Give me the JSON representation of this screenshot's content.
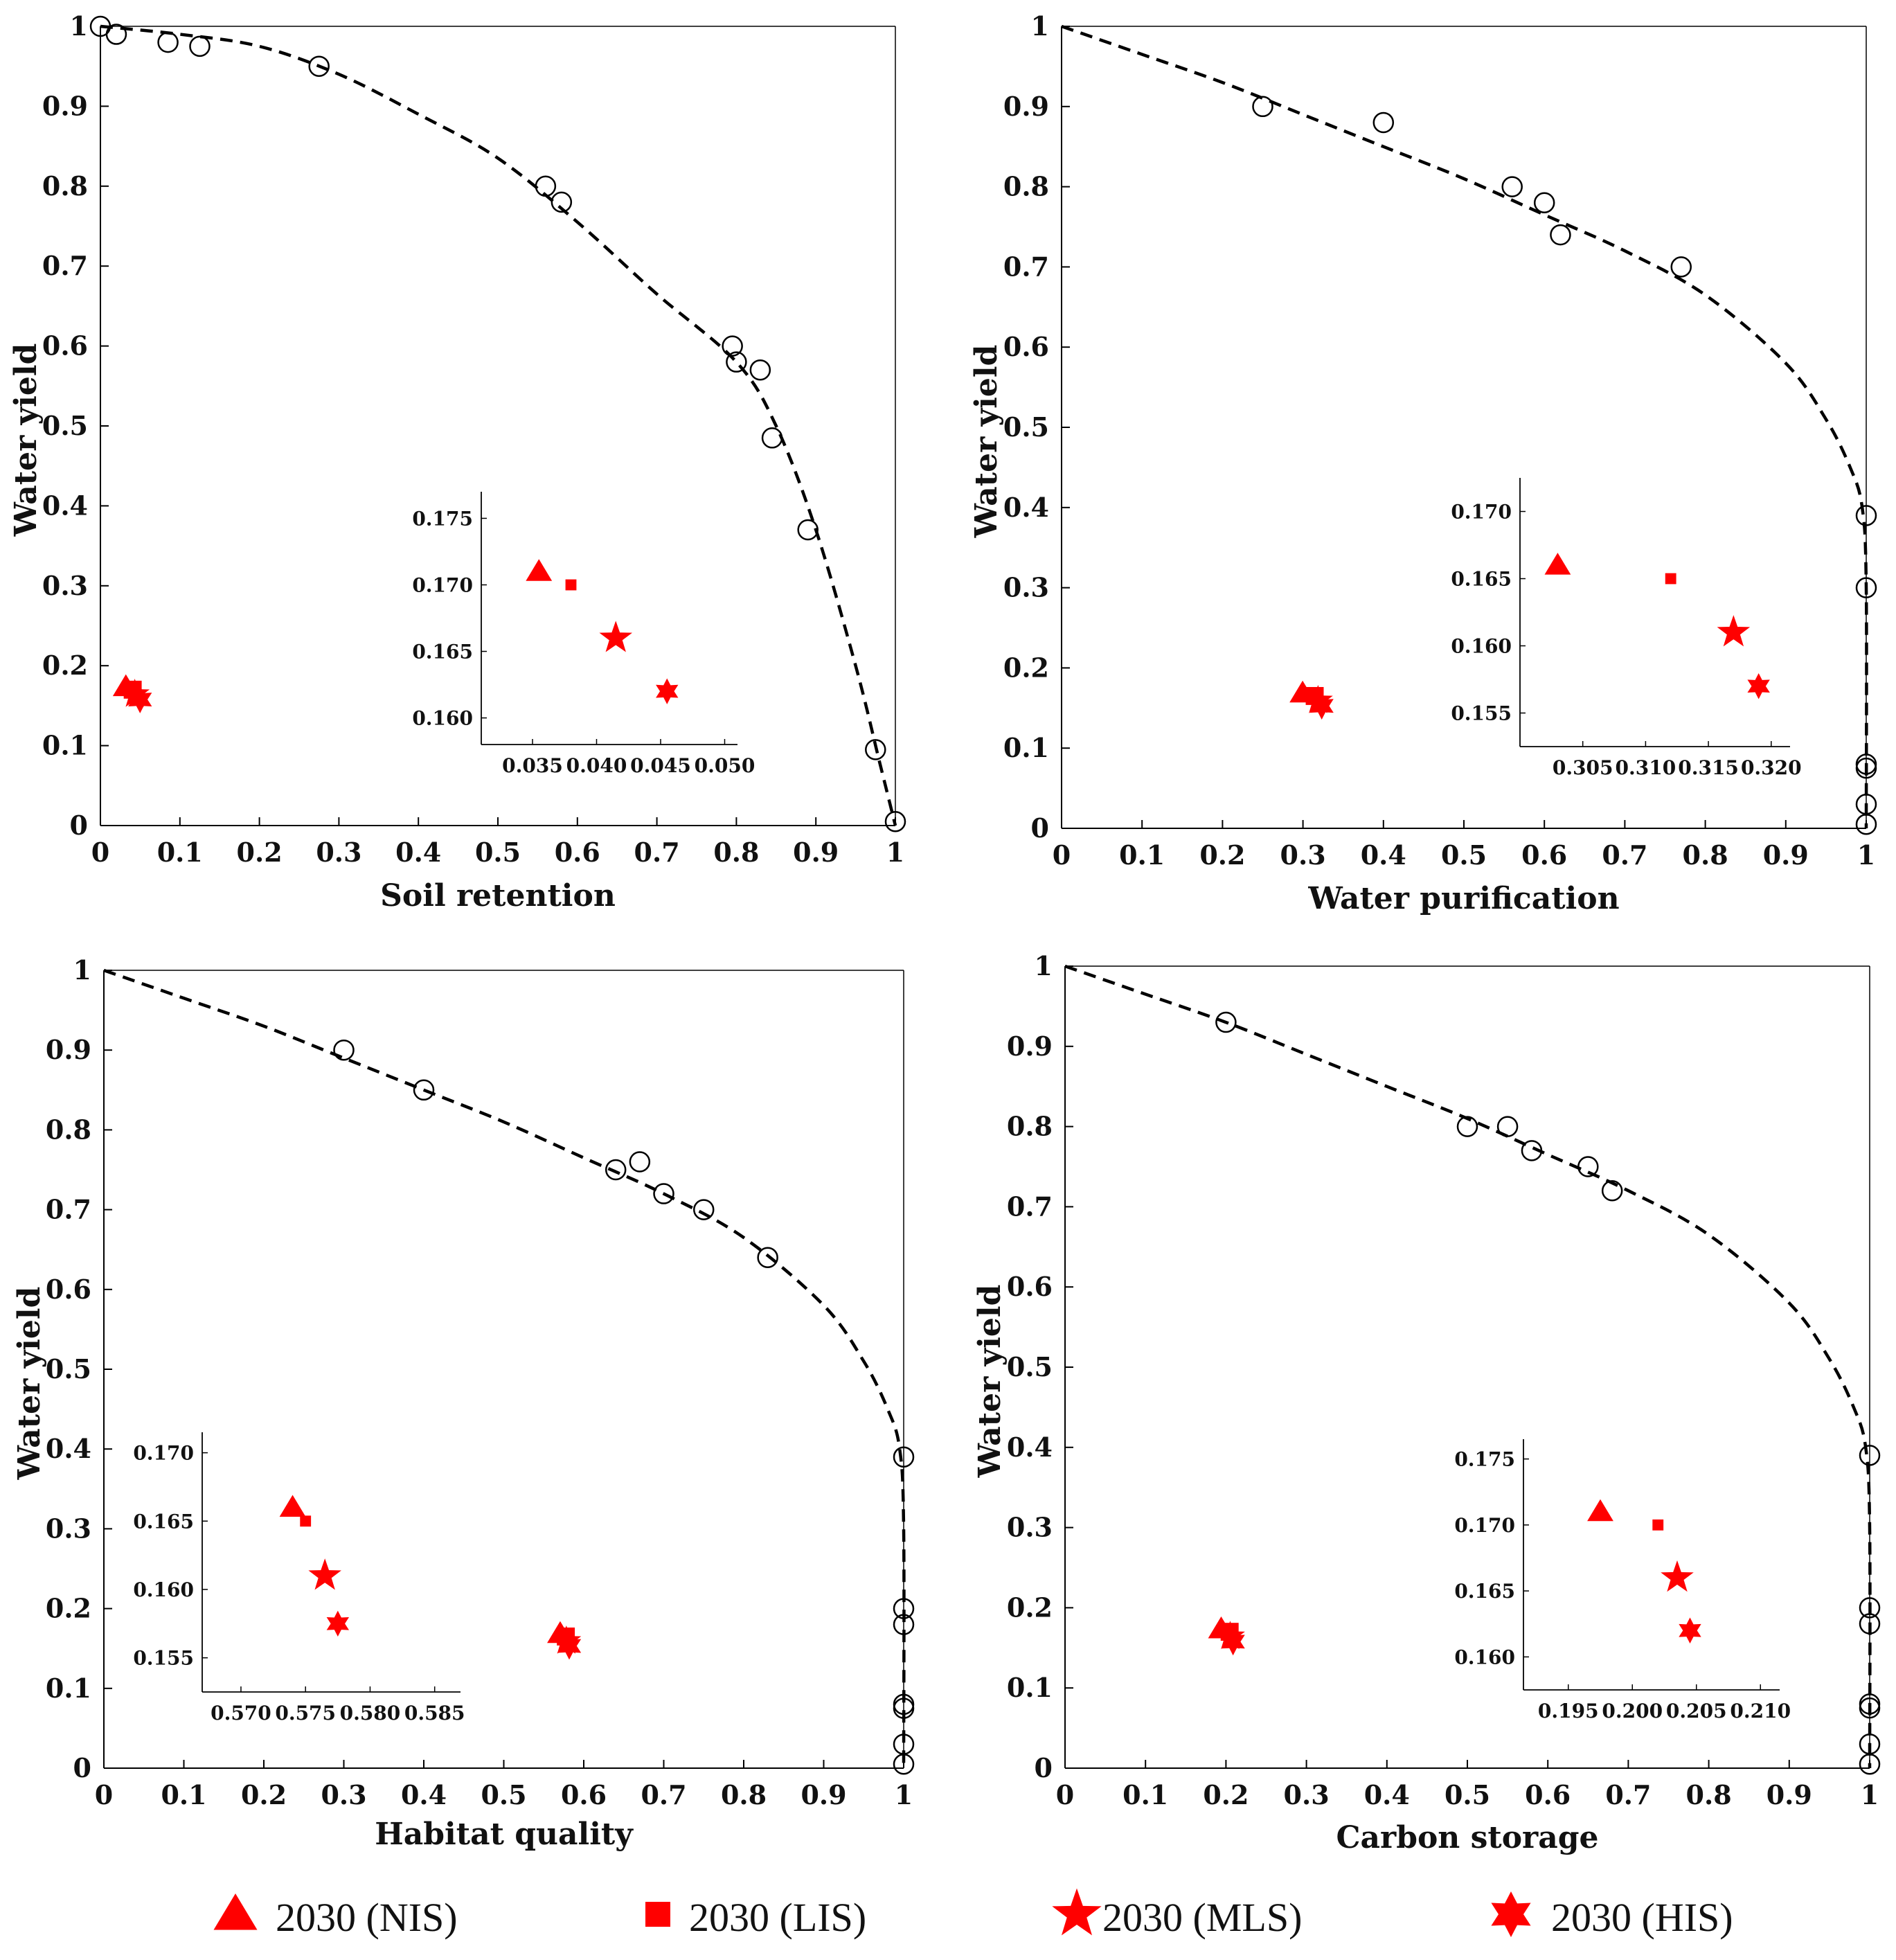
{
  "colors": {
    "marker": "#ff0000",
    "line": "#000000"
  },
  "legend": [
    {
      "label": "2030 (NIS)",
      "symbol": "triangle"
    },
    {
      "label": "2030 (LIS)",
      "symbol": "square"
    },
    {
      "label": "2030 (MLS)",
      "symbol": "star5"
    },
    {
      "label": "2030 (HIS)",
      "symbol": "star6"
    }
  ],
  "chart_data": [
    {
      "id": "soil",
      "type": "scatter",
      "xlabel": "Soil retention",
      "ylabel": "Water yield",
      "xlim": [
        0,
        1
      ],
      "ylim": [
        0,
        1
      ],
      "xticks": [
        "0",
        "0.1",
        "0.2",
        "0.3",
        "0.4",
        "0.5",
        "0.6",
        "0.7",
        "0.8",
        "0.9",
        "1"
      ],
      "yticks": [
        "0",
        "0.1",
        "0.2",
        "0.3",
        "0.4",
        "0.5",
        "0.6",
        "0.7",
        "0.8",
        "0.9",
        "1"
      ],
      "frontier_points": [
        [
          0,
          1
        ],
        [
          0.02,
          0.99
        ],
        [
          0.085,
          0.98
        ],
        [
          0.125,
          0.975
        ],
        [
          0.275,
          0.95
        ],
        [
          0.56,
          0.8
        ],
        [
          0.58,
          0.78
        ],
        [
          0.795,
          0.6
        ],
        [
          0.8,
          0.58
        ],
        [
          0.83,
          0.57
        ],
        [
          0.845,
          0.485
        ],
        [
          0.89,
          0.37
        ],
        [
          0.975,
          0.095
        ],
        [
          1,
          0.005
        ]
      ],
      "frontier_curve": [
        [
          0,
          1
        ],
        [
          0.1,
          0.99
        ],
        [
          0.2,
          0.975
        ],
        [
          0.3,
          0.94
        ],
        [
          0.4,
          0.89
        ],
        [
          0.5,
          0.835
        ],
        [
          0.6,
          0.755
        ],
        [
          0.7,
          0.665
        ],
        [
          0.8,
          0.58
        ],
        [
          0.85,
          0.5
        ],
        [
          0.9,
          0.37
        ],
        [
          0.95,
          0.2
        ],
        [
          0.98,
          0.08
        ],
        [
          1,
          0
        ]
      ],
      "scenarios": [
        {
          "name": "2030 (NIS)",
          "symbol": "triangle",
          "x": 0.0355,
          "y": 0.171
        },
        {
          "name": "2030 (LIS)",
          "symbol": "square",
          "x": 0.038,
          "y": 0.17
        },
        {
          "name": "2030 (MLS)",
          "symbol": "star5",
          "x": 0.0415,
          "y": 0.166
        },
        {
          "name": "2030 (HIS)",
          "symbol": "star6",
          "x": 0.0455,
          "y": 0.162
        }
      ],
      "inset": {
        "xlim": [
          0.031,
          0.051
        ],
        "ylim": [
          0.158,
          0.177
        ],
        "xticks": [
          0.035,
          0.04,
          0.045,
          0.05
        ],
        "xtick_labels": [
          "0.035",
          "0.040",
          "0.045",
          "0.050"
        ],
        "yticks": [
          0.16,
          0.165,
          0.17,
          0.175
        ],
        "ytick_labels": [
          "0.160",
          "0.165",
          "0.170",
          "0.175"
        ]
      }
    },
    {
      "id": "water",
      "type": "scatter",
      "xlabel": "Water purification",
      "ylabel": "Water yield",
      "xlim": [
        0,
        1
      ],
      "ylim": [
        0,
        1
      ],
      "xticks": [
        "0",
        "0.1",
        "0.2",
        "0.3",
        "0.4",
        "0.5",
        "0.6",
        "0.7",
        "0.8",
        "0.9",
        "1"
      ],
      "yticks": [
        "0",
        "0.1",
        "0.2",
        "0.3",
        "0.4",
        "0.5",
        "0.6",
        "0.7",
        "0.8",
        "0.9",
        "1"
      ],
      "frontier_points": [
        [
          0.25,
          0.9
        ],
        [
          0.4,
          0.88
        ],
        [
          0.56,
          0.8
        ],
        [
          0.6,
          0.78
        ],
        [
          0.62,
          0.74
        ],
        [
          0.77,
          0.7
        ],
        [
          1,
          0.39
        ],
        [
          1,
          0.3
        ],
        [
          1,
          0.08
        ],
        [
          1,
          0.075
        ],
        [
          1,
          0.03
        ],
        [
          1,
          0.005
        ]
      ],
      "frontier_curve": [
        [
          0,
          1
        ],
        [
          0.1,
          0.965
        ],
        [
          0.2,
          0.93
        ],
        [
          0.3,
          0.89
        ],
        [
          0.4,
          0.85
        ],
        [
          0.5,
          0.81
        ],
        [
          0.6,
          0.765
        ],
        [
          0.7,
          0.72
        ],
        [
          0.8,
          0.665
        ],
        [
          0.9,
          0.58
        ],
        [
          0.95,
          0.51
        ],
        [
          0.98,
          0.45
        ],
        [
          0.995,
          0.4
        ],
        [
          1,
          0.3
        ],
        [
          1,
          0
        ]
      ],
      "scenarios": [
        {
          "name": "2030 (NIS)",
          "symbol": "triangle",
          "x": 0.303,
          "y": 0.166
        },
        {
          "name": "2030 (LIS)",
          "symbol": "square",
          "x": 0.312,
          "y": 0.165
        },
        {
          "name": "2030 (MLS)",
          "symbol": "star5",
          "x": 0.317,
          "y": 0.161
        },
        {
          "name": "2030 (HIS)",
          "symbol": "star6",
          "x": 0.319,
          "y": 0.157
        }
      ],
      "inset": {
        "xlim": [
          0.3,
          0.3215
        ],
        "ylim": [
          0.1525,
          0.1725
        ],
        "xticks": [
          0.305,
          0.31,
          0.315,
          0.32
        ],
        "xtick_labels": [
          "0.305",
          "0.310",
          "0.315",
          "0.320"
        ],
        "yticks": [
          0.155,
          0.16,
          0.165,
          0.17
        ],
        "ytick_labels": [
          "0.155",
          "0.160",
          "0.165",
          "0.170"
        ]
      }
    },
    {
      "id": "habitat",
      "type": "scatter",
      "xlabel": "Habitat quality",
      "ylabel": "Water yield",
      "xlim": [
        0,
        1
      ],
      "ylim": [
        0,
        1
      ],
      "xticks": [
        "0",
        "0.1",
        "0.2",
        "0.3",
        "0.4",
        "0.5",
        "0.6",
        "0.7",
        "0.8",
        "0.9",
        "1"
      ],
      "yticks": [
        "0",
        "0.1",
        "0.2",
        "0.3",
        "0.4",
        "0.5",
        "0.6",
        "0.7",
        "0.8",
        "0.9",
        "1"
      ],
      "frontier_points": [
        [
          0.3,
          0.9
        ],
        [
          0.4,
          0.85
        ],
        [
          0.64,
          0.75
        ],
        [
          0.67,
          0.76
        ],
        [
          0.7,
          0.72
        ],
        [
          0.75,
          0.7
        ],
        [
          0.83,
          0.64
        ],
        [
          1,
          0.39
        ],
        [
          1,
          0.2
        ],
        [
          1,
          0.18
        ],
        [
          1,
          0.08
        ],
        [
          1,
          0.075
        ],
        [
          1,
          0.03
        ],
        [
          1,
          0.005
        ]
      ],
      "frontier_curve": [
        [
          0,
          1
        ],
        [
          0.1,
          0.965
        ],
        [
          0.2,
          0.93
        ],
        [
          0.3,
          0.89
        ],
        [
          0.4,
          0.85
        ],
        [
          0.5,
          0.81
        ],
        [
          0.6,
          0.765
        ],
        [
          0.7,
          0.72
        ],
        [
          0.8,
          0.665
        ],
        [
          0.9,
          0.58
        ],
        [
          0.95,
          0.51
        ],
        [
          0.98,
          0.45
        ],
        [
          0.995,
          0.4
        ],
        [
          1,
          0.3
        ],
        [
          1,
          0
        ]
      ],
      "scenarios": [
        {
          "name": "2030 (NIS)",
          "symbol": "triangle",
          "x": 0.574,
          "y": 0.166
        },
        {
          "name": "2030 (LIS)",
          "symbol": "square",
          "x": 0.575,
          "y": 0.165
        },
        {
          "name": "2030 (MLS)",
          "symbol": "star5",
          "x": 0.5765,
          "y": 0.161
        },
        {
          "name": "2030 (HIS)",
          "symbol": "star6",
          "x": 0.5775,
          "y": 0.1575
        }
      ],
      "inset": {
        "xlim": [
          0.567,
          0.587
        ],
        "ylim": [
          0.1525,
          0.1715
        ],
        "xticks": [
          0.57,
          0.575,
          0.58,
          0.585
        ],
        "xtick_labels": [
          "0.570",
          "0.575",
          "0.580",
          "0.585"
        ],
        "yticks": [
          0.155,
          0.16,
          0.165,
          0.17
        ],
        "ytick_labels": [
          "0.155",
          "0.160",
          "0.165",
          "0.170"
        ]
      }
    },
    {
      "id": "carbon",
      "type": "scatter",
      "xlabel": "Carbon storage",
      "ylabel": "Water yield",
      "xlim": [
        0,
        1
      ],
      "ylim": [
        0,
        1
      ],
      "xticks": [
        "0",
        "0.1",
        "0.2",
        "0.3",
        "0.4",
        "0.5",
        "0.6",
        "0.7",
        "0.8",
        "0.9",
        "1"
      ],
      "yticks": [
        "0",
        "0.1",
        "0.2",
        "0.3",
        "0.4",
        "0.5",
        "0.6",
        "0.7",
        "0.8",
        "0.9",
        "1"
      ],
      "frontier_points": [
        [
          0.2,
          0.93
        ],
        [
          0.5,
          0.8
        ],
        [
          0.55,
          0.8
        ],
        [
          0.58,
          0.77
        ],
        [
          0.65,
          0.75
        ],
        [
          0.68,
          0.72
        ],
        [
          1,
          0.39
        ],
        [
          1,
          0.2
        ],
        [
          1,
          0.18
        ],
        [
          1,
          0.08
        ],
        [
          1,
          0.075
        ],
        [
          1,
          0.03
        ],
        [
          1,
          0.005
        ]
      ],
      "frontier_curve": [
        [
          0,
          1
        ],
        [
          0.1,
          0.965
        ],
        [
          0.2,
          0.93
        ],
        [
          0.3,
          0.89
        ],
        [
          0.4,
          0.85
        ],
        [
          0.5,
          0.81
        ],
        [
          0.6,
          0.765
        ],
        [
          0.7,
          0.72
        ],
        [
          0.8,
          0.665
        ],
        [
          0.9,
          0.58
        ],
        [
          0.95,
          0.51
        ],
        [
          0.98,
          0.45
        ],
        [
          0.995,
          0.4
        ],
        [
          1,
          0.3
        ],
        [
          1,
          0
        ]
      ],
      "scenarios": [
        {
          "name": "2030 (NIS)",
          "symbol": "triangle",
          "x": 0.1975,
          "y": 0.171
        },
        {
          "name": "2030 (LIS)",
          "symbol": "square",
          "x": 0.202,
          "y": 0.17
        },
        {
          "name": "2030 (MLS)",
          "symbol": "star5",
          "x": 0.2035,
          "y": 0.166
        },
        {
          "name": "2030 (HIS)",
          "symbol": "star6",
          "x": 0.2045,
          "y": 0.162
        }
      ],
      "inset": {
        "xlim": [
          0.1915,
          0.2115
        ],
        "ylim": [
          0.1575,
          0.1765
        ],
        "xticks": [
          0.195,
          0.2,
          0.205,
          0.21
        ],
        "xtick_labels": [
          "0.195",
          "0.200",
          "0.205",
          "0.210"
        ],
        "yticks": [
          0.16,
          0.165,
          0.17,
          0.175
        ],
        "ytick_labels": [
          "0.160",
          "0.165",
          "0.170",
          "0.175"
        ]
      }
    }
  ]
}
